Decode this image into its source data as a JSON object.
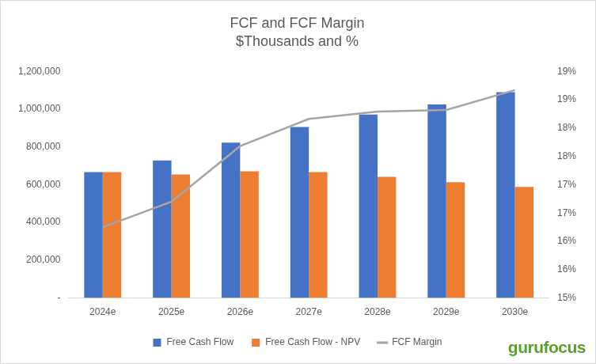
{
  "chart_data": {
    "type": "bar",
    "title": "FCF and FCF Margin",
    "subtitle": "$Thousands and %",
    "annotations": [
      "gurufocus"
    ],
    "categories": [
      "2024e",
      "2025e",
      "2026e",
      "2027e",
      "2028e",
      "2029e",
      "2030e"
    ],
    "series": [
      {
        "name": "Free Cash Flow",
        "type": "bar",
        "color": "#4472c4",
        "values": [
          667000,
          728000,
          823000,
          905000,
          971000,
          1025000,
          1090000
        ]
      },
      {
        "name": "Free Cash Flow - NPV",
        "type": "bar",
        "color": "#ed7d31",
        "values": [
          667000,
          654000,
          671000,
          667000,
          642000,
          613000,
          588000
        ]
      },
      {
        "name": "FCF Margin",
        "type": "line",
        "color": "#a5a5a5",
        "axis": "y2",
        "marker": "none",
        "line_style": "solid",
        "values": [
          16.25,
          16.7,
          17.68,
          18.16,
          18.29,
          18.32,
          18.67
        ]
      }
    ],
    "ylim": [
      0,
      1200000
    ],
    "yticks": [
      {
        "value": 0,
        "label": "-"
      },
      {
        "value": 200000,
        "label": "200,000"
      },
      {
        "value": 400000,
        "label": "400,000"
      },
      {
        "value": 600000,
        "label": "600,000"
      },
      {
        "value": 800000,
        "label": "800,000"
      },
      {
        "value": 1000000,
        "label": "1,000,000"
      },
      {
        "value": 1200000,
        "label": "1,200,000"
      }
    ],
    "y2lim": [
      15,
      19
    ],
    "y2ticks": [
      {
        "value": 15,
        "label": "15%"
      },
      {
        "value": 15.5,
        "label": "16%"
      },
      {
        "value": 16,
        "label": "16%"
      },
      {
        "value": 16.5,
        "label": "17%"
      },
      {
        "value": 17,
        "label": "17%"
      },
      {
        "value": 17.5,
        "label": "18%"
      },
      {
        "value": 18,
        "label": "18%"
      },
      {
        "value": 18.5,
        "label": "19%"
      },
      {
        "value": 19,
        "label": "19%"
      }
    ],
    "grid": false,
    "legend": "bottom"
  }
}
